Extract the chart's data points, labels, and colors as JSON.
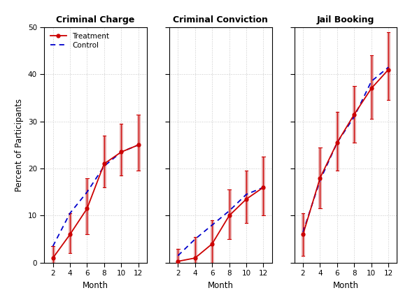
{
  "panels": [
    {
      "title": "Criminal Charge",
      "months": [
        2,
        4,
        6,
        8,
        10,
        12
      ],
      "treatment": [
        1.0,
        6.0,
        11.5,
        21.0,
        23.5,
        25.0
      ],
      "control": [
        3.5,
        10.5,
        15.0,
        20.5,
        23.5,
        25.0
      ],
      "ci_lower": [
        -1.0,
        2.0,
        6.0,
        16.0,
        18.5,
        19.5
      ],
      "ci_upper": [
        3.5,
        10.5,
        18.0,
        27.0,
        29.5,
        31.5
      ]
    },
    {
      "title": "Criminal Conviction",
      "months": [
        2,
        4,
        6,
        8,
        10,
        12
      ],
      "treatment": [
        0.3,
        1.0,
        4.0,
        10.0,
        13.5,
        16.0
      ],
      "control": [
        1.5,
        5.0,
        8.0,
        11.0,
        14.5,
        16.0
      ],
      "ci_lower": [
        -2.5,
        -3.0,
        -0.5,
        5.0,
        8.5,
        10.0
      ],
      "ci_upper": [
        3.0,
        5.5,
        9.0,
        15.5,
        19.5,
        22.5
      ]
    },
    {
      "title": "Jail Booking",
      "months": [
        2,
        4,
        6,
        8,
        10,
        12
      ],
      "treatment": [
        6.0,
        18.0,
        25.5,
        31.5,
        37.0,
        41.0
      ],
      "control": [
        6.5,
        17.5,
        25.5,
        31.0,
        38.5,
        41.5
      ],
      "ci_lower": [
        1.5,
        11.5,
        19.5,
        25.5,
        30.5,
        34.5
      ],
      "ci_upper": [
        10.5,
        24.5,
        32.0,
        37.5,
        44.0,
        49.0
      ]
    }
  ],
  "ylim": [
    0,
    50
  ],
  "yticks": [
    0,
    10,
    20,
    30,
    40,
    50
  ],
  "xticks": [
    2,
    4,
    6,
    8,
    10,
    12
  ],
  "ylabel": "Percent of Participants",
  "xlabel": "Month",
  "treatment_color": "#CC0000",
  "control_color": "#0000CC",
  "ci_color": "#E8AAAA",
  "bg_color": "#FFFFFF",
  "grid_color": "#C8C8C8",
  "legend_labels": [
    "Treatment",
    "Control"
  ]
}
